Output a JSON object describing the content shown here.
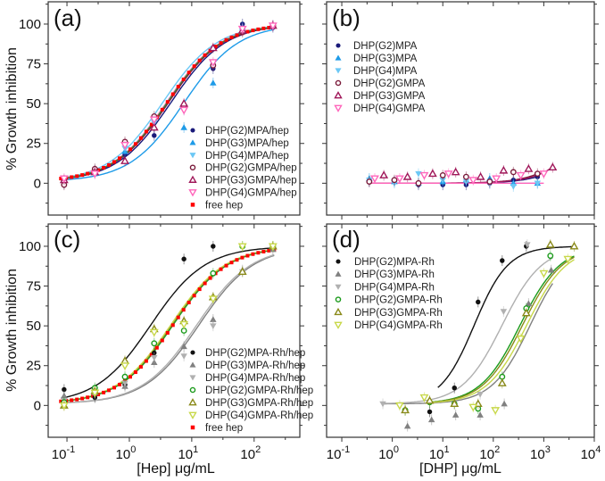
{
  "chart_data": [
    {
      "panel": "(a)",
      "type": "scatter",
      "xscale": "log",
      "xlim": [
        0.05,
        540
      ],
      "ylim": [
        -20,
        114
      ],
      "ylabel": "% Growth inhibition",
      "xlabel": "",
      "yticks": [
        0,
        25,
        50,
        75,
        100
      ],
      "xticks": [
        0.1,
        1,
        10,
        100
      ],
      "show_xtick_labels": false,
      "show_ytick_labels": true,
      "legend_position": "bottom-right",
      "x": [
        0.09,
        0.28,
        0.85,
        2.5,
        7.5,
        22,
        65,
        200
      ],
      "series": [
        {
          "name": "DHP(G2)MPA/hep",
          "color": "#1a1a7a",
          "marker": "circle",
          "filled": true,
          "values": [
            0,
            8,
            18,
            30,
            47,
            72,
            100,
            98
          ],
          "fit": {
            "ec50": 4.6,
            "hill": 1.0
          }
        },
        {
          "name": "DHP(G3)MPA/hep",
          "color": "#1e9be8",
          "marker": "triangle-up",
          "filled": true,
          "values": [
            2,
            7,
            20,
            35,
            35,
            63,
            98,
            99
          ],
          "fit": {
            "ec50": 7.5,
            "hill": 1.0
          }
        },
        {
          "name": "DHP(G4)MPA/hep",
          "color": "#6cc8f5",
          "marker": "triangle-down",
          "filled": true,
          "values": [
            0,
            6,
            22,
            38,
            46,
            75,
            97,
            99
          ],
          "fit": {
            "ec50": 3.4,
            "hill": 1.0
          }
        },
        {
          "name": "DHP(G2)GMPA/hep",
          "color": "#7a1a3a",
          "marker": "circle",
          "filled": false,
          "values": [
            -1,
            9,
            26,
            42,
            48,
            74,
            95,
            99
          ],
          "fit": {
            "ec50": 4.2,
            "hill": 1.0
          }
        },
        {
          "name": "DHP(G3)GMPA/hep",
          "color": "#a0185a",
          "marker": "triangle-up",
          "filled": false,
          "values": [
            2,
            7,
            14,
            35,
            50,
            85,
            96,
            99
          ],
          "fit": {
            "ec50": 4.0,
            "hill": 1.0
          }
        },
        {
          "name": "DHP(G4)GMPA/hep",
          "color": "#ff66bb",
          "marker": "triangle-down",
          "filled": false,
          "values": [
            3,
            6,
            24,
            40,
            46,
            76,
            97,
            99
          ],
          "fit": {
            "ec50": 3.9,
            "hill": 1.0
          }
        },
        {
          "name": "free hep",
          "color": "#ff0000",
          "marker": "square",
          "filled": true,
          "values": [],
          "fit": {
            "ec50": 4.0,
            "hill": 1.0,
            "dotted": true
          }
        }
      ]
    },
    {
      "panel": "(b)",
      "type": "scatter",
      "xscale": "log",
      "xlim": [
        0.05,
        10000
      ],
      "ylim": [
        -20,
        114
      ],
      "yticks": [
        0,
        25,
        50,
        75,
        100
      ],
      "xticks": [
        0.1,
        1,
        10,
        100,
        1000,
        10000
      ],
      "show_xtick_labels": false,
      "show_ytick_labels": false,
      "legend_position": "top-left",
      "series": [
        {
          "name": "DHP(G2)MPA",
          "color": "#1a1a7a",
          "marker": "circle",
          "filled": true,
          "x": [
            0.35,
            1.1,
            3.3,
            10,
            29,
            85,
            250,
            750
          ],
          "values": [
            1,
            1,
            -1,
            -1,
            -1,
            0,
            2,
            4
          ],
          "fit": {
            "kind": "rise",
            "k": 0.0055,
            "from": 0.35,
            "to": 800
          }
        },
        {
          "name": "DHP(G3)MPA",
          "color": "#1e9be8",
          "marker": "triangle-up",
          "filled": true,
          "x": [
            0.35,
            1.1,
            3.3,
            10,
            29,
            85,
            250,
            750
          ],
          "values": [
            3,
            1,
            0,
            1,
            2,
            3,
            0,
            0
          ],
          "fit": null
        },
        {
          "name": "DHP(G4)MPA",
          "color": "#6cc8f5",
          "marker": "triangle-down",
          "filled": true,
          "x": [
            0.35,
            1.1,
            3.3,
            10,
            29,
            85,
            250,
            750
          ],
          "values": [
            2,
            0,
            6,
            2,
            1,
            0,
            -2,
            0
          ],
          "fit": {
            "kind": "flat",
            "from": 0.35,
            "to": 800
          }
        },
        {
          "name": "DHP(G2)GMPA",
          "color": "#7a1a3a",
          "marker": "circle",
          "filled": false,
          "x": [
            0.35,
            1.1,
            3.3,
            10,
            29,
            85,
            250,
            750
          ],
          "values": [
            1,
            2,
            0,
            5,
            4,
            1,
            7,
            6
          ],
          "fit": {
            "kind": "rise",
            "k": 0.008,
            "from": 0.35,
            "to": 800
          }
        },
        {
          "name": "DHP(G3)GMPA",
          "color": "#a0185a",
          "marker": "triangle-up",
          "filled": false,
          "x": [
            0.68,
            2,
            6.3,
            18,
            56,
            160,
            500,
            1500
          ],
          "values": [
            5,
            4,
            6,
            7,
            4,
            8,
            9,
            10
          ],
          "fit": {
            "kind": "rise",
            "k": 0.0068,
            "from": 0.35,
            "to": 1500
          }
        },
        {
          "name": "DHP(G4)GMPA",
          "color": "#ff66bb",
          "marker": "triangle-down",
          "filled": false,
          "x": [
            0.45,
            1.4,
            4.3,
            13,
            40,
            115,
            350,
            1000
          ],
          "values": [
            3,
            3,
            5,
            6,
            2,
            3,
            5,
            6
          ],
          "fit": {
            "kind": "flat",
            "from": 0.35,
            "to": 1000
          }
        }
      ]
    },
    {
      "panel": "(c)",
      "type": "scatter",
      "xscale": "log",
      "xlim": [
        0.05,
        540
      ],
      "ylim": [
        -20,
        114
      ],
      "ylabel": "% Growth inhibition",
      "xlabel": "[Hep] μg/mL",
      "yticks": [
        0,
        25,
        50,
        75,
        100
      ],
      "xticks": [
        0.1,
        1,
        10,
        100
      ],
      "xtick_labels": [
        "10",
        "10",
        "10",
        "10"
      ],
      "xtick_exponents": [
        "-1",
        "0",
        "1",
        "2"
      ],
      "show_xtick_labels": true,
      "show_ytick_labels": true,
      "legend_position": "bottom-right",
      "x": [
        0.09,
        0.28,
        0.85,
        2.5,
        7.5,
        22,
        65,
        200
      ],
      "series": [
        {
          "name": "DHP(G2)MPA-Rh/hep",
          "color": "#111111",
          "marker": "circle",
          "filled": true,
          "values": [
            10,
            5,
            13,
            33,
            92,
            100,
            null,
            null
          ],
          "fit": {
            "ec50": 2.2,
            "hill": 1.0
          }
        },
        {
          "name": "DHP(G3)MPA-Rh/hep",
          "color": "#808080",
          "marker": "triangle-up",
          "filled": true,
          "values": [
            6,
            8,
            12,
            27,
            37,
            54,
            85,
            98
          ],
          "fit": {
            "ec50": 13,
            "hill": 1.0
          }
        },
        {
          "name": "DHP(G4)MPA-Rh/hep",
          "color": "#b0b0b0",
          "marker": "triangle-down",
          "filled": true,
          "values": [
            3,
            7,
            14,
            30,
            31,
            50,
            84,
            99
          ],
          "fit": {
            "ec50": 12,
            "hill": 1.0
          }
        },
        {
          "name": "DHP(G2)GMPA-Rh/hep",
          "color": "#1a9a1a",
          "marker": "circle",
          "filled": false,
          "values": [
            2,
            11,
            18,
            39,
            47,
            83,
            100,
            100
          ],
          "fit": {
            "ec50": 5.0,
            "hill": 1.0
          }
        },
        {
          "name": "DHP(G3)GMPA-Rh/hep",
          "color": "#8a8a1a",
          "marker": "triangle-up",
          "filled": false,
          "values": [
            0,
            9,
            28,
            48,
            53,
            68,
            84,
            100
          ],
          "fit": {
            "ec50": 4.8,
            "hill": 1.0
          }
        },
        {
          "name": "DHP(G4)GMPA-Rh/hep",
          "color": "#c8d84a",
          "marker": "triangle-down",
          "filled": false,
          "values": [
            0,
            8,
            25,
            46,
            51,
            67,
            100,
            100
          ],
          "fit": {
            "ec50": 4.6,
            "hill": 1.0
          }
        },
        {
          "name": "free hep",
          "color": "#ff0000",
          "marker": "square",
          "filled": true,
          "values": [],
          "fit": {
            "ec50": 5.0,
            "hill": 1.0,
            "dotted": true
          }
        }
      ]
    },
    {
      "panel": "(d)",
      "type": "scatter",
      "xscale": "log",
      "xlim": [
        0.05,
        10000
      ],
      "ylim": [
        -20,
        114
      ],
      "xlabel": "[DHP] μg/mL",
      "yticks": [
        0,
        25,
        50,
        75,
        100
      ],
      "xticks": [
        0.1,
        1,
        10,
        100,
        1000,
        10000
      ],
      "xtick_labels": [
        "10",
        "10",
        "10",
        "10",
        "10",
        "10"
      ],
      "xtick_exponents": [
        "-1",
        "0",
        "1",
        "2",
        "3",
        "4"
      ],
      "show_xtick_labels": true,
      "show_ytick_labels": false,
      "legend_position": "top-left",
      "series": [
        {
          "name": "DHP(G2)MPA-Rh",
          "color": "#111111",
          "marker": "circle",
          "filled": true,
          "x": [
            5.5,
            17,
            50,
            150,
            450
          ],
          "values": [
            -4,
            11,
            65,
            91,
            100
          ],
          "fit": {
            "ec50": 42,
            "hill": 1.3,
            "from": 8,
            "to": 4000
          }
        },
        {
          "name": "DHP(G3)MPA-Rh",
          "color": "#808080",
          "marker": "triangle-up",
          "filled": true,
          "x": [
            2,
            6,
            18,
            55,
            165,
            500,
            1400
          ],
          "values": [
            -13,
            -9,
            -6,
            -6,
            1,
            64,
            85
          ],
          "fit": {
            "ec50": 540,
            "hill": 1.15,
            "from": 0.7,
            "to": 1500
          }
        },
        {
          "name": "DHP(G4)MPA-Rh",
          "color": "#b0b0b0",
          "marker": "triangle-down",
          "filled": true,
          "x": [
            0.65,
            55,
            160,
            470
          ],
          "values": [
            1,
            7,
            59,
            101
          ],
          "fit": {
            "ec50": 150,
            "hill": 1.1,
            "from": 0.7,
            "to": 1500
          }
        },
        {
          "name": "DHP(G2)GMPA-Rh",
          "color": "#1a9a1a",
          "marker": "circle",
          "filled": false,
          "x": [
            1.8,
            5.5,
            17,
            50,
            150,
            450,
            1350
          ],
          "values": [
            -3,
            2,
            1,
            -2,
            18,
            61,
            94
          ],
          "fit": {
            "ec50": 340,
            "hill": 1.1,
            "from": 5.5,
            "to": 4000
          }
        },
        {
          "name": "DHP(G3)GMPA-Rh",
          "color": "#8a8a1a",
          "marker": "triangle-up",
          "filled": false,
          "x": [
            1.8,
            5.5,
            17,
            50,
            150,
            450,
            1350,
            4000
          ],
          "values": [
            -3,
            3,
            1,
            1,
            14,
            58,
            101,
            100
          ],
          "fit": {
            "ec50": 380,
            "hill": 1.1,
            "from": 5.5,
            "to": 4000
          }
        },
        {
          "name": "DHP(G4)GMPA-Rh",
          "color": "#c8d84a",
          "marker": "triangle-down",
          "filled": false,
          "x": [
            1.4,
            4.3,
            40,
            110,
            350,
            1000,
            3000
          ],
          "values": [
            0,
            5,
            -1,
            -3,
            42,
            83,
            92
          ],
          "fit": {
            "ec50": 460,
            "hill": 1.1,
            "from": 5.5,
            "to": 4000
          }
        }
      ]
    }
  ]
}
